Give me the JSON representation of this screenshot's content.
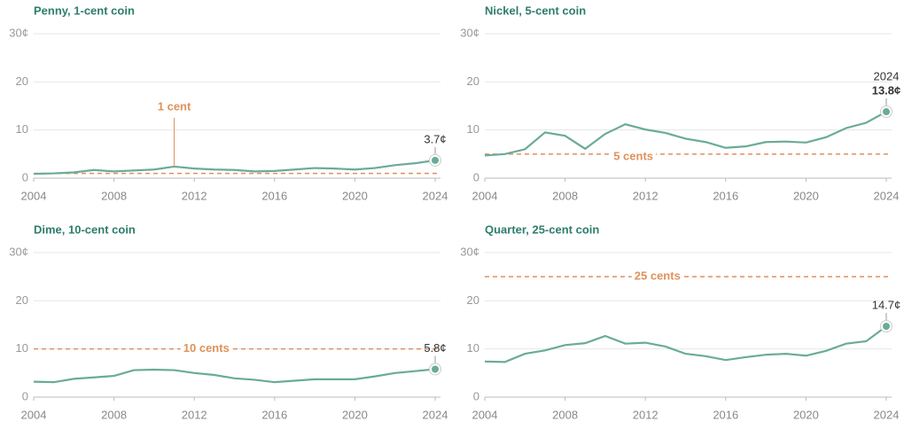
{
  "chart_data": [
    {
      "type": "line",
      "title": "Penny, 1-cent coin",
      "x": [
        2004,
        2005,
        2006,
        2007,
        2008,
        2009,
        2010,
        2011,
        2012,
        2013,
        2014,
        2015,
        2016,
        2017,
        2018,
        2019,
        2020,
        2021,
        2022,
        2023,
        2024
      ],
      "values": [
        0.9,
        1.0,
        1.2,
        1.7,
        1.4,
        1.6,
        1.8,
        2.4,
        2.0,
        1.8,
        1.7,
        1.4,
        1.5,
        1.8,
        2.1,
        2.0,
        1.8,
        2.1,
        2.7,
        3.1,
        3.7
      ],
      "value_labels": [
        null,
        null,
        null,
        null,
        null,
        null,
        null,
        null,
        null,
        null,
        null,
        null,
        null,
        null,
        null,
        null,
        null,
        null,
        null,
        null,
        "3.7¢"
      ],
      "color": "#6aab98",
      "reference": {
        "value": 1,
        "label": "1 cent",
        "color": "#e0915a"
      },
      "xlim": [
        2004,
        2024
      ],
      "xticks": [
        2004,
        2008,
        2012,
        2016,
        2020,
        2024
      ],
      "ylim": [
        0,
        30
      ],
      "yticks": [
        0,
        10,
        20,
        {
          "value": 30,
          "label": "30¢"
        }
      ],
      "grid": true
    },
    {
      "type": "line",
      "title": "Nickel, 5-cent coin",
      "x": [
        2004,
        2005,
        2006,
        2007,
        2008,
        2009,
        2010,
        2011,
        2012,
        2013,
        2014,
        2015,
        2016,
        2017,
        2018,
        2019,
        2020,
        2021,
        2022,
        2023,
        2024
      ],
      "values": [
        4.7,
        5.0,
        6.0,
        9.5,
        8.8,
        6.1,
        9.2,
        11.2,
        10.1,
        9.4,
        8.2,
        7.5,
        6.3,
        6.6,
        7.5,
        7.6,
        7.4,
        8.5,
        10.4,
        11.5,
        13.8
      ],
      "value_labels": [
        null,
        null,
        null,
        null,
        null,
        null,
        null,
        null,
        null,
        null,
        null,
        null,
        null,
        null,
        null,
        null,
        null,
        null,
        null,
        null,
        "13.8¢"
      ],
      "annotations": [
        "2024"
      ],
      "color": "#6aab98",
      "reference": {
        "value": 5,
        "label": "5 cents",
        "color": "#e0915a"
      },
      "xlim": [
        2004,
        2024
      ],
      "xticks": [
        2004,
        2008,
        2012,
        2016,
        2020,
        2024
      ],
      "ylim": [
        0,
        30
      ],
      "yticks": [
        0,
        10,
        20,
        {
          "value": 30,
          "label": "30¢"
        }
      ],
      "grid": true
    },
    {
      "type": "line",
      "title": "Dime, 10-cent coin",
      "x": [
        2004,
        2005,
        2006,
        2007,
        2008,
        2009,
        2010,
        2011,
        2012,
        2013,
        2014,
        2015,
        2016,
        2017,
        2018,
        2019,
        2020,
        2021,
        2022,
        2023,
        2024
      ],
      "values": [
        3.2,
        3.1,
        3.8,
        4.1,
        4.4,
        5.6,
        5.7,
        5.6,
        5.0,
        4.6,
        3.9,
        3.6,
        3.1,
        3.4,
        3.7,
        3.7,
        3.7,
        4.3,
        5.0,
        5.4,
        5.8
      ],
      "value_labels": [
        null,
        null,
        null,
        null,
        null,
        null,
        null,
        null,
        null,
        null,
        null,
        null,
        null,
        null,
        null,
        null,
        null,
        null,
        null,
        null,
        "5.8¢"
      ],
      "color": "#6aab98",
      "reference": {
        "value": 10,
        "label": "10 cents",
        "color": "#e0915a"
      },
      "xlim": [
        2004,
        2024
      ],
      "xticks": [
        2004,
        2008,
        2012,
        2016,
        2020,
        2024
      ],
      "ylim": [
        0,
        30
      ],
      "yticks": [
        0,
        10,
        20,
        {
          "value": 30,
          "label": "30¢"
        }
      ],
      "grid": true
    },
    {
      "type": "line",
      "title": "Quarter, 25-cent coin",
      "x": [
        2004,
        2005,
        2006,
        2007,
        2008,
        2009,
        2010,
        2011,
        2012,
        2013,
        2014,
        2015,
        2016,
        2017,
        2018,
        2019,
        2020,
        2021,
        2022,
        2023,
        2024
      ],
      "values": [
        7.4,
        7.3,
        9.0,
        9.7,
        10.8,
        11.2,
        12.7,
        11.1,
        11.3,
        10.5,
        9.0,
        8.5,
        7.7,
        8.3,
        8.8,
        9.0,
        8.6,
        9.6,
        11.1,
        11.6,
        14.7
      ],
      "value_labels": [
        null,
        null,
        null,
        null,
        null,
        null,
        null,
        null,
        null,
        null,
        null,
        null,
        null,
        null,
        null,
        null,
        null,
        null,
        null,
        null,
        "14.7¢"
      ],
      "color": "#6aab98",
      "reference": {
        "value": 25,
        "label": "25 cents",
        "color": "#e0915a"
      },
      "xlim": [
        2004,
        2024
      ],
      "xticks": [
        2004,
        2008,
        2012,
        2016,
        2020,
        2024
      ],
      "ylim": [
        0,
        30
      ],
      "yticks": [
        0,
        10,
        20,
        {
          "value": 30,
          "label": "30¢"
        }
      ],
      "grid": true
    }
  ]
}
